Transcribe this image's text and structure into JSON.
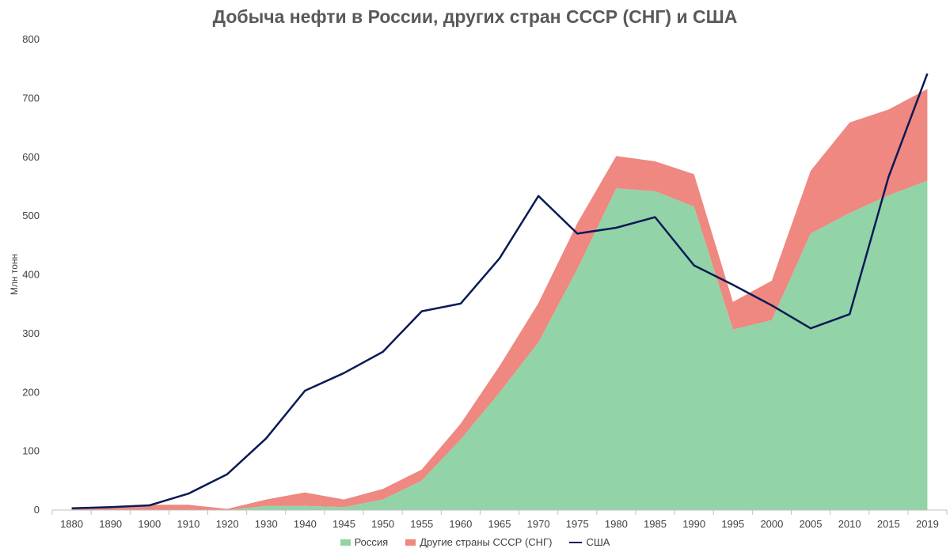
{
  "chart_data": {
    "type": "area",
    "title": "Добыча нефти в России, других стран СССР (СНГ) и США",
    "ylabel": "Млн тонн",
    "xlabel": "",
    "ylim": [
      0,
      800
    ],
    "yticks": [
      0,
      100,
      200,
      300,
      400,
      500,
      600,
      700,
      800
    ],
    "categories": [
      "1880",
      "1890",
      "1900",
      "1910",
      "1920",
      "1930",
      "1940",
      "1945",
      "1950",
      "1955",
      "1960",
      "1965",
      "1970",
      "1975",
      "1980",
      "1985",
      "1990",
      "1995",
      "2000",
      "2005",
      "2010",
      "2015",
      "2019"
    ],
    "series": [
      {
        "name": "Россия",
        "kind": "area",
        "stack": "stack",
        "color": "#92d3a7",
        "values": [
          0,
          0,
          0,
          0,
          0,
          7,
          7,
          5,
          18,
          50,
          120,
          200,
          285,
          410,
          547,
          542,
          516,
          307,
          323,
          470,
          505,
          535,
          560
        ]
      },
      {
        "name": "Другие страны СССР (СНГ)",
        "kind": "area",
        "stack": "stack",
        "color": "#ee8880",
        "values": [
          3,
          5,
          9,
          9,
          2,
          11,
          23,
          13,
          18,
          19,
          27,
          45,
          67,
          78,
          55,
          51,
          55,
          47,
          67,
          107,
          154,
          146,
          156
        ]
      },
      {
        "name": "США",
        "kind": "line",
        "color": "#0b1a55",
        "values": [
          3,
          5,
          8,
          28,
          61,
          122,
          203,
          233,
          269,
          338,
          351,
          428,
          534,
          470,
          480,
          498,
          416,
          383,
          348,
          309,
          333,
          566,
          742
        ]
      }
    ],
    "grid": false,
    "legend": "bottom"
  }
}
